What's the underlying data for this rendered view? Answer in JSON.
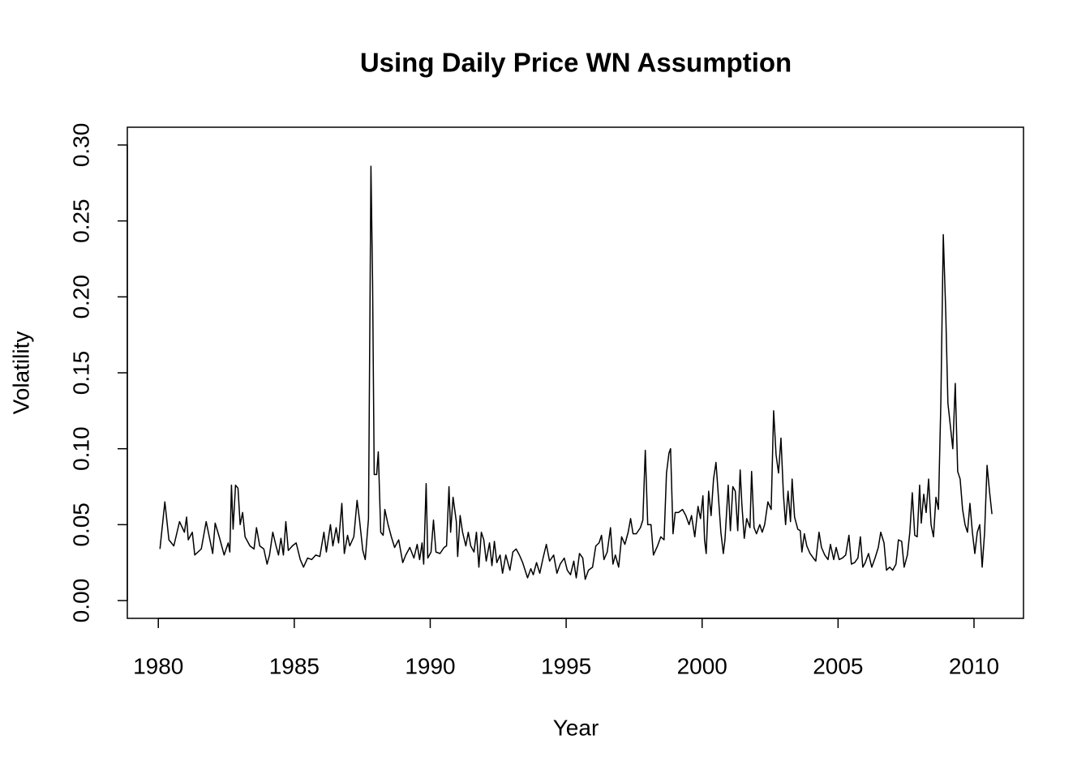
{
  "chart_data": {
    "type": "line",
    "title": "Using Daily Price WN Assumption",
    "x_label": "Year",
    "y_label": "Volatility",
    "color": "#000000",
    "xlim": [
      1978.86,
      2011.82
    ],
    "xticks": [
      1980,
      1985,
      1990,
      1995,
      2000,
      2005,
      2010
    ],
    "ylim": [
      -0.0117,
      0.3117
    ],
    "yticks": [
      {
        "value": 0,
        "label": "0.00"
      },
      {
        "value": 0.05,
        "label": "0.05"
      },
      {
        "value": 0.1,
        "label": "0.10"
      },
      {
        "value": 0.15,
        "label": "0.15"
      },
      {
        "value": 0.2,
        "label": "0.20"
      },
      {
        "value": 0.25,
        "label": "0.25"
      },
      {
        "value": 0.3,
        "label": "0.30"
      }
    ],
    "x": [
      1980.06,
      1980.24,
      1980.39,
      1980.57,
      1980.78,
      1980.96,
      1981.04,
      1981.1,
      1981.25,
      1981.34,
      1981.58,
      1981.76,
      1982.0,
      1982.09,
      1982.24,
      1982.42,
      1982.57,
      1982.63,
      1982.69,
      1982.75,
      1982.84,
      1982.93,
      1983.01,
      1983.1,
      1983.19,
      1983.37,
      1983.52,
      1983.61,
      1983.73,
      1983.88,
      1984.0,
      1984.09,
      1984.21,
      1984.33,
      1984.42,
      1984.51,
      1984.6,
      1984.69,
      1984.78,
      1984.93,
      1985.07,
      1985.22,
      1985.34,
      1985.49,
      1985.64,
      1985.79,
      1985.94,
      1986.09,
      1986.18,
      1986.33,
      1986.42,
      1986.54,
      1986.63,
      1986.75,
      1986.84,
      1986.96,
      1987.04,
      1987.19,
      1987.31,
      1987.4,
      1987.52,
      1987.61,
      1987.73,
      1987.82,
      1987.88,
      1987.94,
      1988.03,
      1988.09,
      1988.18,
      1988.27,
      1988.33,
      1988.45,
      1988.57,
      1988.69,
      1988.84,
      1988.99,
      1989.1,
      1989.25,
      1989.4,
      1989.52,
      1989.61,
      1989.7,
      1989.76,
      1989.85,
      1989.91,
      1990.03,
      1990.12,
      1990.21,
      1990.36,
      1990.51,
      1990.6,
      1990.69,
      1990.75,
      1990.84,
      1990.96,
      1991.01,
      1991.1,
      1991.19,
      1991.31,
      1991.4,
      1991.49,
      1991.61,
      1991.7,
      1991.79,
      1991.88,
      1991.97,
      1992.06,
      1992.18,
      1992.27,
      1992.36,
      1992.45,
      1992.57,
      1992.66,
      1992.78,
      1992.93,
      1993.04,
      1993.16,
      1993.28,
      1993.4,
      1993.58,
      1993.7,
      1993.79,
      1993.91,
      1994.03,
      1994.15,
      1994.27,
      1994.39,
      1994.54,
      1994.66,
      1994.78,
      1994.93,
      1995.04,
      1995.16,
      1995.28,
      1995.37,
      1995.49,
      1995.61,
      1995.7,
      1995.82,
      1995.97,
      1996.09,
      1996.21,
      1996.3,
      1996.39,
      1996.51,
      1996.63,
      1996.72,
      1996.81,
      1996.93,
      1997.04,
      1997.16,
      1997.28,
      1997.37,
      1997.46,
      1997.58,
      1997.73,
      1997.82,
      1997.91,
      1998.0,
      1998.12,
      1998.21,
      1998.36,
      1998.48,
      1998.6,
      1998.69,
      1998.78,
      1998.84,
      1998.93,
      1999.01,
      1999.13,
      1999.28,
      1999.4,
      1999.52,
      1999.61,
      1999.73,
      1999.85,
      1999.94,
      2000.03,
      2000.09,
      2000.15,
      2000.24,
      2000.33,
      2000.42,
      2000.51,
      2000.57,
      2000.69,
      2000.78,
      2000.84,
      2000.96,
      2001.04,
      2001.13,
      2001.22,
      2001.31,
      2001.4,
      2001.46,
      2001.55,
      2001.64,
      2001.76,
      2001.82,
      2001.91,
      2002.0,
      2002.12,
      2002.21,
      2002.3,
      2002.42,
      2002.54,
      2002.63,
      2002.72,
      2002.81,
      2002.9,
      2002.99,
      2003.07,
      2003.16,
      2003.25,
      2003.31,
      2003.4,
      2003.52,
      2003.61,
      2003.67,
      2003.76,
      2003.85,
      2003.97,
      2004.09,
      2004.18,
      2004.3,
      2004.39,
      2004.51,
      2004.63,
      2004.72,
      2004.84,
      2004.93,
      2005.04,
      2005.16,
      2005.28,
      2005.4,
      2005.49,
      2005.61,
      2005.73,
      2005.82,
      2005.91,
      2006.0,
      2006.12,
      2006.24,
      2006.36,
      2006.48,
      2006.57,
      2006.69,
      2006.78,
      2006.9,
      2007.01,
      2007.13,
      2007.22,
      2007.34,
      2007.43,
      2007.55,
      2007.64,
      2007.73,
      2007.82,
      2007.91,
      2008.0,
      2008.06,
      2008.15,
      2008.24,
      2008.33,
      2008.42,
      2008.51,
      2008.6,
      2008.69,
      2008.78,
      2008.87,
      2008.96,
      2009.04,
      2009.13,
      2009.22,
      2009.31,
      2009.4,
      2009.49,
      2009.58,
      2009.67,
      2009.76,
      2009.85,
      2009.94,
      2010.03,
      2010.12,
      2010.21,
      2010.3,
      2010.39,
      2010.48,
      2010.57,
      2010.66
    ],
    "values": [
      0.034,
      0.065,
      0.04,
      0.036,
      0.052,
      0.045,
      0.055,
      0.04,
      0.045,
      0.03,
      0.034,
      0.052,
      0.031,
      0.051,
      0.042,
      0.03,
      0.038,
      0.032,
      0.076,
      0.047,
      0.076,
      0.074,
      0.05,
      0.058,
      0.042,
      0.036,
      0.034,
      0.048,
      0.036,
      0.034,
      0.024,
      0.03,
      0.045,
      0.036,
      0.03,
      0.041,
      0.03,
      0.052,
      0.033,
      0.036,
      0.038,
      0.027,
      0.022,
      0.028,
      0.027,
      0.03,
      0.029,
      0.045,
      0.032,
      0.05,
      0.036,
      0.048,
      0.038,
      0.064,
      0.031,
      0.043,
      0.036,
      0.042,
      0.066,
      0.053,
      0.033,
      0.027,
      0.054,
      0.286,
      0.21,
      0.083,
      0.083,
      0.098,
      0.045,
      0.043,
      0.06,
      0.05,
      0.042,
      0.035,
      0.04,
      0.025,
      0.03,
      0.035,
      0.028,
      0.037,
      0.027,
      0.038,
      0.024,
      0.077,
      0.028,
      0.032,
      0.053,
      0.032,
      0.031,
      0.035,
      0.036,
      0.075,
      0.045,
      0.068,
      0.052,
      0.029,
      0.056,
      0.045,
      0.036,
      0.045,
      0.036,
      0.032,
      0.045,
      0.022,
      0.045,
      0.04,
      0.026,
      0.038,
      0.023,
      0.039,
      0.025,
      0.03,
      0.018,
      0.03,
      0.02,
      0.032,
      0.034,
      0.03,
      0.025,
      0.015,
      0.021,
      0.017,
      0.025,
      0.018,
      0.028,
      0.037,
      0.026,
      0.03,
      0.018,
      0.024,
      0.028,
      0.02,
      0.017,
      0.026,
      0.015,
      0.031,
      0.028,
      0.014,
      0.02,
      0.022,
      0.036,
      0.038,
      0.043,
      0.027,
      0.032,
      0.048,
      0.024,
      0.03,
      0.022,
      0.042,
      0.037,
      0.045,
      0.054,
      0.044,
      0.044,
      0.048,
      0.053,
      0.099,
      0.05,
      0.05,
      0.03,
      0.036,
      0.042,
      0.04,
      0.084,
      0.097,
      0.1,
      0.044,
      0.058,
      0.058,
      0.06,
      0.056,
      0.05,
      0.056,
      0.042,
      0.062,
      0.054,
      0.069,
      0.04,
      0.031,
      0.072,
      0.056,
      0.08,
      0.091,
      0.076,
      0.045,
      0.031,
      0.04,
      0.076,
      0.046,
      0.075,
      0.072,
      0.046,
      0.086,
      0.064,
      0.041,
      0.054,
      0.048,
      0.085,
      0.048,
      0.044,
      0.05,
      0.045,
      0.05,
      0.065,
      0.06,
      0.125,
      0.096,
      0.084,
      0.107,
      0.07,
      0.05,
      0.072,
      0.052,
      0.08,
      0.055,
      0.047,
      0.046,
      0.032,
      0.044,
      0.036,
      0.031,
      0.028,
      0.026,
      0.045,
      0.035,
      0.03,
      0.027,
      0.037,
      0.027,
      0.035,
      0.027,
      0.028,
      0.03,
      0.043,
      0.024,
      0.025,
      0.028,
      0.042,
      0.022,
      0.025,
      0.031,
      0.022,
      0.028,
      0.035,
      0.045,
      0.038,
      0.02,
      0.022,
      0.02,
      0.024,
      0.04,
      0.039,
      0.022,
      0.03,
      0.045,
      0.071,
      0.043,
      0.042,
      0.076,
      0.051,
      0.07,
      0.058,
      0.08,
      0.05,
      0.042,
      0.068,
      0.06,
      0.13,
      0.241,
      0.19,
      0.13,
      0.115,
      0.1,
      0.143,
      0.085,
      0.08,
      0.06,
      0.05,
      0.045,
      0.064,
      0.045,
      0.031,
      0.045,
      0.05,
      0.022,
      0.045,
      0.089,
      0.072,
      0.057
    ]
  }
}
